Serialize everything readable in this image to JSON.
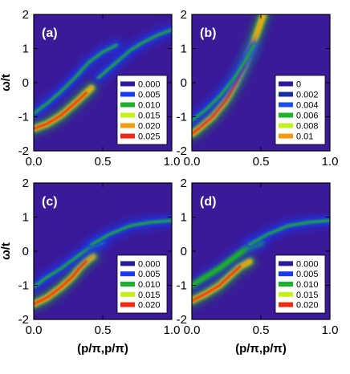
{
  "chart_data": [
    {
      "type": "heatmap",
      "panel_label": "(a)",
      "xlabel": "",
      "ylabel": "ω/t",
      "xlim": [
        0,
        1
      ],
      "ylim": [
        -2,
        2
      ],
      "x_ticks": [
        "0.0",
        "0.5",
        "1.0"
      ],
      "y_ticks": [
        "-2",
        "-1",
        "0",
        "1",
        "2"
      ],
      "legend": {
        "position": "bottom-right",
        "entries": [
          {
            "label": "0.000",
            "color": "#2a1a9e"
          },
          {
            "label": "0.005",
            "color": "#1a3af2"
          },
          {
            "label": "0.010",
            "color": "#1bb32a"
          },
          {
            "label": "0.015",
            "color": "#c6f01a"
          },
          {
            "label": "0.020",
            "color": "#f59a0c"
          },
          {
            "label": "0.025",
            "color": "#ee2a14"
          }
        ]
      },
      "features": [
        {
          "kind": "lower-band",
          "points": [
            [
              0.0,
              -1.35
            ],
            [
              0.1,
              -1.2
            ],
            [
              0.2,
              -0.95
            ],
            [
              0.3,
              -0.6
            ],
            [
              0.38,
              -0.3
            ],
            [
              0.42,
              -0.15
            ]
          ],
          "peak": 0.025
        },
        {
          "kind": "upper-band",
          "points": [
            [
              0.47,
              0.15
            ],
            [
              0.6,
              0.6
            ],
            [
              0.7,
              0.95
            ],
            [
              0.8,
              1.2
            ],
            [
              0.9,
              1.4
            ],
            [
              1.0,
              1.55
            ]
          ],
          "peak": 0.012
        },
        {
          "kind": "shadow-band",
          "points": [
            [
              0.0,
              -0.9
            ],
            [
              0.1,
              -0.6
            ],
            [
              0.2,
              -0.25
            ],
            [
              0.3,
              0.15
            ],
            [
              0.4,
              0.6
            ],
            [
              0.5,
              0.9
            ],
            [
              0.6,
              1.1
            ]
          ],
          "peak": 0.005
        }
      ]
    },
    {
      "type": "heatmap",
      "panel_label": "(b)",
      "xlabel": "",
      "ylabel": "",
      "xlim": [
        0,
        1
      ],
      "ylim": [
        -2,
        2
      ],
      "x_ticks": [
        "0.0",
        "0.5",
        "1.0"
      ],
      "y_ticks": [
        "-2",
        "-1",
        "0",
        "1",
        "2"
      ],
      "legend": {
        "position": "bottom-right",
        "entries": [
          {
            "label": "0",
            "color": "#2a1a9e"
          },
          {
            "label": "0.002",
            "color": "#1a2f9a"
          },
          {
            "label": "0.004",
            "color": "#1a4ef2"
          },
          {
            "label": "0.006",
            "color": "#1bb32a"
          },
          {
            "label": "0.008",
            "color": "#c6f01a"
          },
          {
            "label": "0.01",
            "color": "#f59a0c"
          }
        ]
      },
      "features": [
        {
          "kind": "main-band",
          "points": [
            [
              0.0,
              -1.5
            ],
            [
              0.05,
              -1.35
            ],
            [
              0.15,
              -1.0
            ],
            [
              0.25,
              -0.5
            ],
            [
              0.32,
              0.0
            ],
            [
              0.38,
              0.5
            ],
            [
              0.45,
              1.2
            ],
            [
              0.52,
              2.0
            ]
          ],
          "peak": 0.01
        },
        {
          "kind": "shadow-band",
          "points": [
            [
              0.0,
              -1.1
            ],
            [
              0.1,
              -0.8
            ],
            [
              0.2,
              -0.4
            ],
            [
              0.3,
              0.1
            ],
            [
              0.38,
              0.6
            ],
            [
              0.45,
              1.1
            ]
          ],
          "peak": 0.004
        }
      ]
    },
    {
      "type": "heatmap",
      "panel_label": "(c)",
      "xlabel": "(p/π,p/π)",
      "ylabel": "ω/t",
      "xlim": [
        0,
        1
      ],
      "ylim": [
        -2,
        2
      ],
      "x_ticks": [
        "0.0",
        "0.5",
        "1.0"
      ],
      "y_ticks": [
        "-2",
        "-1",
        "0",
        "1",
        "2"
      ],
      "legend": {
        "position": "bottom-right",
        "entries": [
          {
            "label": "0.000",
            "color": "#2a1a9e"
          },
          {
            "label": "0.005",
            "color": "#1a3af2"
          },
          {
            "label": "0.010",
            "color": "#1bb32a"
          },
          {
            "label": "0.015",
            "color": "#c6f01a"
          },
          {
            "label": "0.020",
            "color": "#ee2a14"
          }
        ]
      },
      "features": [
        {
          "kind": "lower-band",
          "points": [
            [
              0.0,
              -1.55
            ],
            [
              0.1,
              -1.35
            ],
            [
              0.2,
              -1.05
            ],
            [
              0.28,
              -0.75
            ],
            [
              0.33,
              -0.5
            ],
            [
              0.38,
              -0.3
            ],
            [
              0.43,
              -0.15
            ]
          ],
          "peak": 0.02
        },
        {
          "kind": "shadow-band",
          "points": [
            [
              0.0,
              -1.05
            ],
            [
              0.1,
              -0.75
            ],
            [
              0.2,
              -0.5
            ],
            [
              0.3,
              -0.2
            ],
            [
              0.4,
              0.1
            ],
            [
              0.5,
              0.25
            ]
          ],
          "peak": 0.006
        },
        {
          "kind": "upper-band",
          "points": [
            [
              0.42,
              0.2
            ],
            [
              0.55,
              0.5
            ],
            [
              0.7,
              0.75
            ],
            [
              0.85,
              0.85
            ],
            [
              1.0,
              0.9
            ]
          ],
          "peak": 0.004
        }
      ]
    },
    {
      "type": "heatmap",
      "panel_label": "(d)",
      "xlabel": "(p/π,p/π)",
      "ylabel": "",
      "xlim": [
        0,
        1
      ],
      "ylim": [
        -2,
        2
      ],
      "x_ticks": [
        "0.0",
        "0.5",
        "1.0"
      ],
      "y_ticks": [
        "-2",
        "-1",
        "0",
        "1",
        "2"
      ],
      "legend": {
        "position": "bottom-right",
        "entries": [
          {
            "label": "0.000",
            "color": "#2a1a9e"
          },
          {
            "label": "0.005",
            "color": "#1a3af2"
          },
          {
            "label": "0.010",
            "color": "#1bb32a"
          },
          {
            "label": "0.015",
            "color": "#c6f01a"
          },
          {
            "label": "0.020",
            "color": "#ee2a14"
          }
        ]
      },
      "features": [
        {
          "kind": "lower-band",
          "points": [
            [
              0.0,
              -1.45
            ],
            [
              0.1,
              -1.25
            ],
            [
              0.2,
              -1.0
            ],
            [
              0.28,
              -0.7
            ],
            [
              0.35,
              -0.45
            ],
            [
              0.42,
              -0.3
            ]
          ],
          "peak": 0.012
        },
        {
          "kind": "shadow-band",
          "points": [
            [
              0.0,
              -1.0
            ],
            [
              0.1,
              -0.75
            ],
            [
              0.2,
              -0.5
            ],
            [
              0.3,
              -0.2
            ],
            [
              0.4,
              0.1
            ],
            [
              0.5,
              0.25
            ]
          ],
          "peak": 0.006
        },
        {
          "kind": "upper-band",
          "points": [
            [
              0.42,
              0.2
            ],
            [
              0.55,
              0.5
            ],
            [
              0.7,
              0.75
            ],
            [
              0.85,
              0.85
            ],
            [
              1.0,
              0.9
            ]
          ],
          "peak": 0.004
        }
      ]
    }
  ],
  "colors": {
    "background": "#3a1a98",
    "scale": [
      "#3a1a98",
      "#1a3af2",
      "#1bb32a",
      "#c6f01a",
      "#f59a0c",
      "#ee2a14"
    ]
  }
}
